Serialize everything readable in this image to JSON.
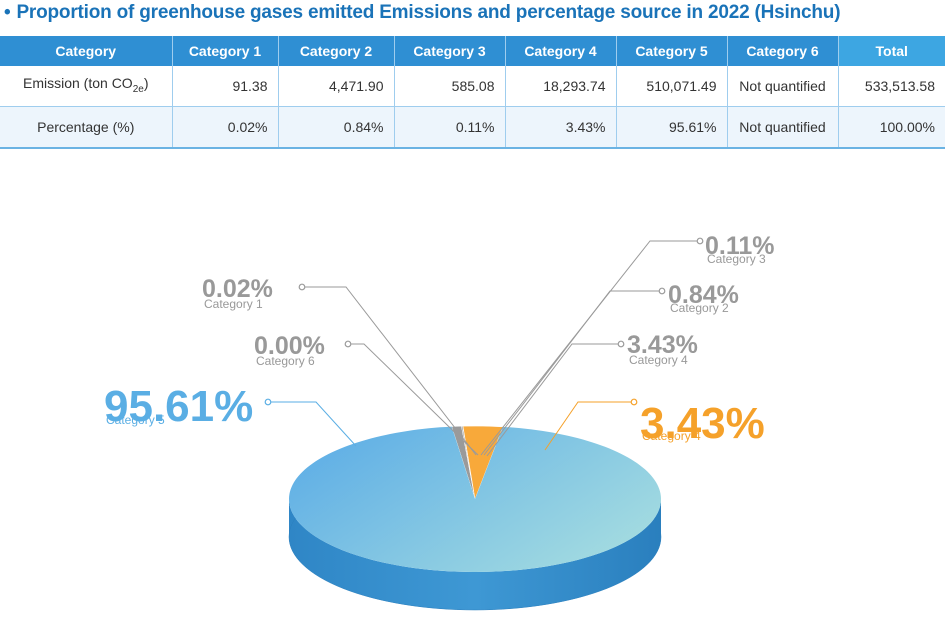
{
  "title": "Proportion of greenhouse gases emitted Emissions and percentage source in 2022 (Hsinchu)",
  "table": {
    "headers": [
      "Category",
      "Category 1",
      "Category 2",
      "Category 3",
      "Category 4",
      "Category 5",
      "Category 6",
      "Total"
    ],
    "rows": [
      {
        "label_main": "Emission (ton CO",
        "label_sub": "2e",
        "label_end": ")",
        "cells": [
          "91.38",
          "4,471.90",
          "585.08",
          "18,293.74",
          "510,071.49",
          "Not quantified",
          "533,513.58"
        ]
      },
      {
        "label_main": "Percentage (%)",
        "cells": [
          "0.02%",
          "0.84%",
          "0.11%",
          "3.43%",
          "95.61%",
          "Not quantified",
          "100.00%"
        ]
      }
    ]
  },
  "chart_data": {
    "type": "pie",
    "title": "",
    "slices": [
      {
        "label": "Category 5",
        "value": 95.61,
        "color": "#5fb0e6"
      },
      {
        "label": "Category 4",
        "value": 3.43,
        "color": "#f8a93a"
      },
      {
        "label": "Category 2",
        "value": 0.84,
        "color": "#9a9a9a"
      },
      {
        "label": "Category 3",
        "value": 0.11,
        "color": "#9a9a9a"
      },
      {
        "label": "Category 1",
        "value": 0.02,
        "color": "#9a9a9a"
      },
      {
        "label": "Category 6",
        "value": 0.0,
        "color": "#9a9a9a"
      }
    ],
    "labels": [
      {
        "pct": "0.02%",
        "category": "Category 1",
        "color": "#999999"
      },
      {
        "pct": "0.00%",
        "category": "Category 6",
        "color": "#999999"
      },
      {
        "pct": "95.61%",
        "category": "Category 5",
        "color": "#5aaee4"
      },
      {
        "pct": "0.11%",
        "category": "Category 3",
        "color": "#999999"
      },
      {
        "pct": "0.84%",
        "category": "Category 2",
        "color": "#999999"
      },
      {
        "pct": "3.43%",
        "category": "Category 4",
        "color": "#999999"
      },
      {
        "pct": "3.43%",
        "category": "Category 4",
        "color": "#f5a12a"
      }
    ]
  }
}
